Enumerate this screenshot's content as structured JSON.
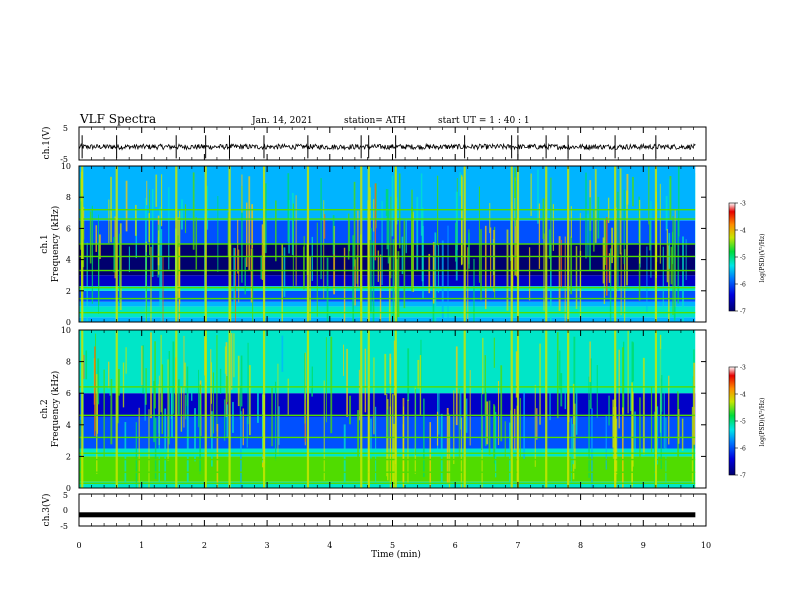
{
  "header": {
    "title": "VLF Spectra",
    "date": "Jan. 14, 2021",
    "station": "station= ATH",
    "start": "start  UT =   1 : 40 : 1"
  },
  "chart_data": [
    {
      "type": "line",
      "id": "ch1-waveform",
      "ylabel": "ch.1(V)",
      "ylim": [
        -5,
        5
      ],
      "yticks": [
        "5",
        "-5"
      ],
      "x_range_min": [
        0,
        9.83
      ],
      "baseline_v": -1.0,
      "amplitude_v": 0.8,
      "color": "#000000"
    },
    {
      "type": "heatmap",
      "id": "ch1-spectrogram",
      "ylabel_line1": "ch.1",
      "ylabel_line2": "Frequency  (kHz)",
      "ylim": [
        0,
        10
      ],
      "yticks": [
        "0",
        "2",
        "4",
        "6",
        "8",
        "10"
      ],
      "x_range_min": [
        0,
        9.83
      ],
      "colorbar": {
        "label": "log(PSD)(V²/Hz)",
        "range": [
          -7,
          -3
        ],
        "ticks": [
          "-3",
          "-4",
          "-5",
          "-6",
          "-7"
        ]
      },
      "bands": [
        {
          "kHz": [
            0.0,
            0.3
          ],
          "level": -5.6
        },
        {
          "kHz": [
            0.3,
            1.0
          ],
          "level": -5.3
        },
        {
          "kHz": [
            1.0,
            1.3
          ],
          "level": -5.8
        },
        {
          "kHz": [
            1.3,
            2.0
          ],
          "level": -6.0
        },
        {
          "kHz": [
            2.0,
            2.3
          ],
          "level": -5.4
        },
        {
          "kHz": [
            2.3,
            3.0
          ],
          "level": -6.3
        },
        {
          "kHz": [
            3.0,
            5.0
          ],
          "level": -6.8
        },
        {
          "kHz": [
            5.0,
            6.5
          ],
          "level": -6.2
        },
        {
          "kHz": [
            6.5,
            10.0
          ],
          "level": -5.6
        }
      ],
      "lines_kHz": [
        0.6,
        1.5,
        2.2,
        3.3,
        4.2,
        5.0,
        6.6,
        7.2
      ],
      "spheric_times_min": [
        0.05,
        0.6,
        1.55,
        2.02,
        2.4,
        2.95,
        3.65,
        4.5,
        4.62,
        5.05,
        6.15,
        6.9,
        7.0,
        7.45,
        7.8,
        8.55,
        9.2
      ]
    },
    {
      "type": "heatmap",
      "id": "ch2-spectrogram",
      "ylabel_line1": "ch.2",
      "ylabel_line2": "Frequency  (kHz)",
      "ylim": [
        0,
        10
      ],
      "yticks": [
        "0",
        "2",
        "4",
        "6",
        "8",
        "10"
      ],
      "x_range_min": [
        0,
        9.83
      ],
      "colorbar": {
        "label": "log(PSD)(V²/Hz)",
        "range": [
          -7,
          -3
        ],
        "ticks": [
          "-3",
          "-4",
          "-5",
          "-6",
          "-7"
        ]
      },
      "bands": [
        {
          "kHz": [
            0.0,
            0.4
          ],
          "level": -5.5
        },
        {
          "kHz": [
            0.4,
            2.0
          ],
          "level": -4.6
        },
        {
          "kHz": [
            2.0,
            2.5
          ],
          "level": -5.4
        },
        {
          "kHz": [
            2.5,
            4.5
          ],
          "level": -6.1
        },
        {
          "kHz": [
            4.5,
            6.0
          ],
          "level": -6.3
        },
        {
          "kHz": [
            6.0,
            10.0
          ],
          "level": -5.3
        }
      ],
      "lines_kHz": [
        0.3,
        1.0,
        1.8,
        2.2,
        3.2,
        4.6,
        6.4
      ],
      "spheric_times_min": [
        0.05,
        0.6,
        1.55,
        2.02,
        2.4,
        2.95,
        3.65,
        4.5,
        4.62,
        5.05,
        6.15,
        6.9,
        7.0,
        7.45,
        7.8,
        8.55,
        9.2
      ]
    },
    {
      "type": "line",
      "id": "ch3-waveform",
      "ylabel": "ch.3(V)",
      "ylim": [
        -5,
        5
      ],
      "yticks": [
        "5",
        "0",
        "-5"
      ],
      "x_range_min": [
        0,
        9.83
      ],
      "baseline_v": -1.5,
      "amplitude_v": 0.3,
      "color": "#000000"
    }
  ],
  "xaxis": {
    "label": "Time  (min)",
    "range": [
      0,
      10
    ],
    "ticks": [
      "0",
      "1",
      "2",
      "3",
      "4",
      "5",
      "6",
      "7",
      "8",
      "9",
      "10"
    ]
  },
  "colormap": [
    "#00006e",
    "#0000c8",
    "#0050ff",
    "#00b4ff",
    "#00e6c8",
    "#00dc64",
    "#50dc00",
    "#c8e600",
    "#ffc800",
    "#ff6400",
    "#e60000",
    "#ffffff"
  ]
}
